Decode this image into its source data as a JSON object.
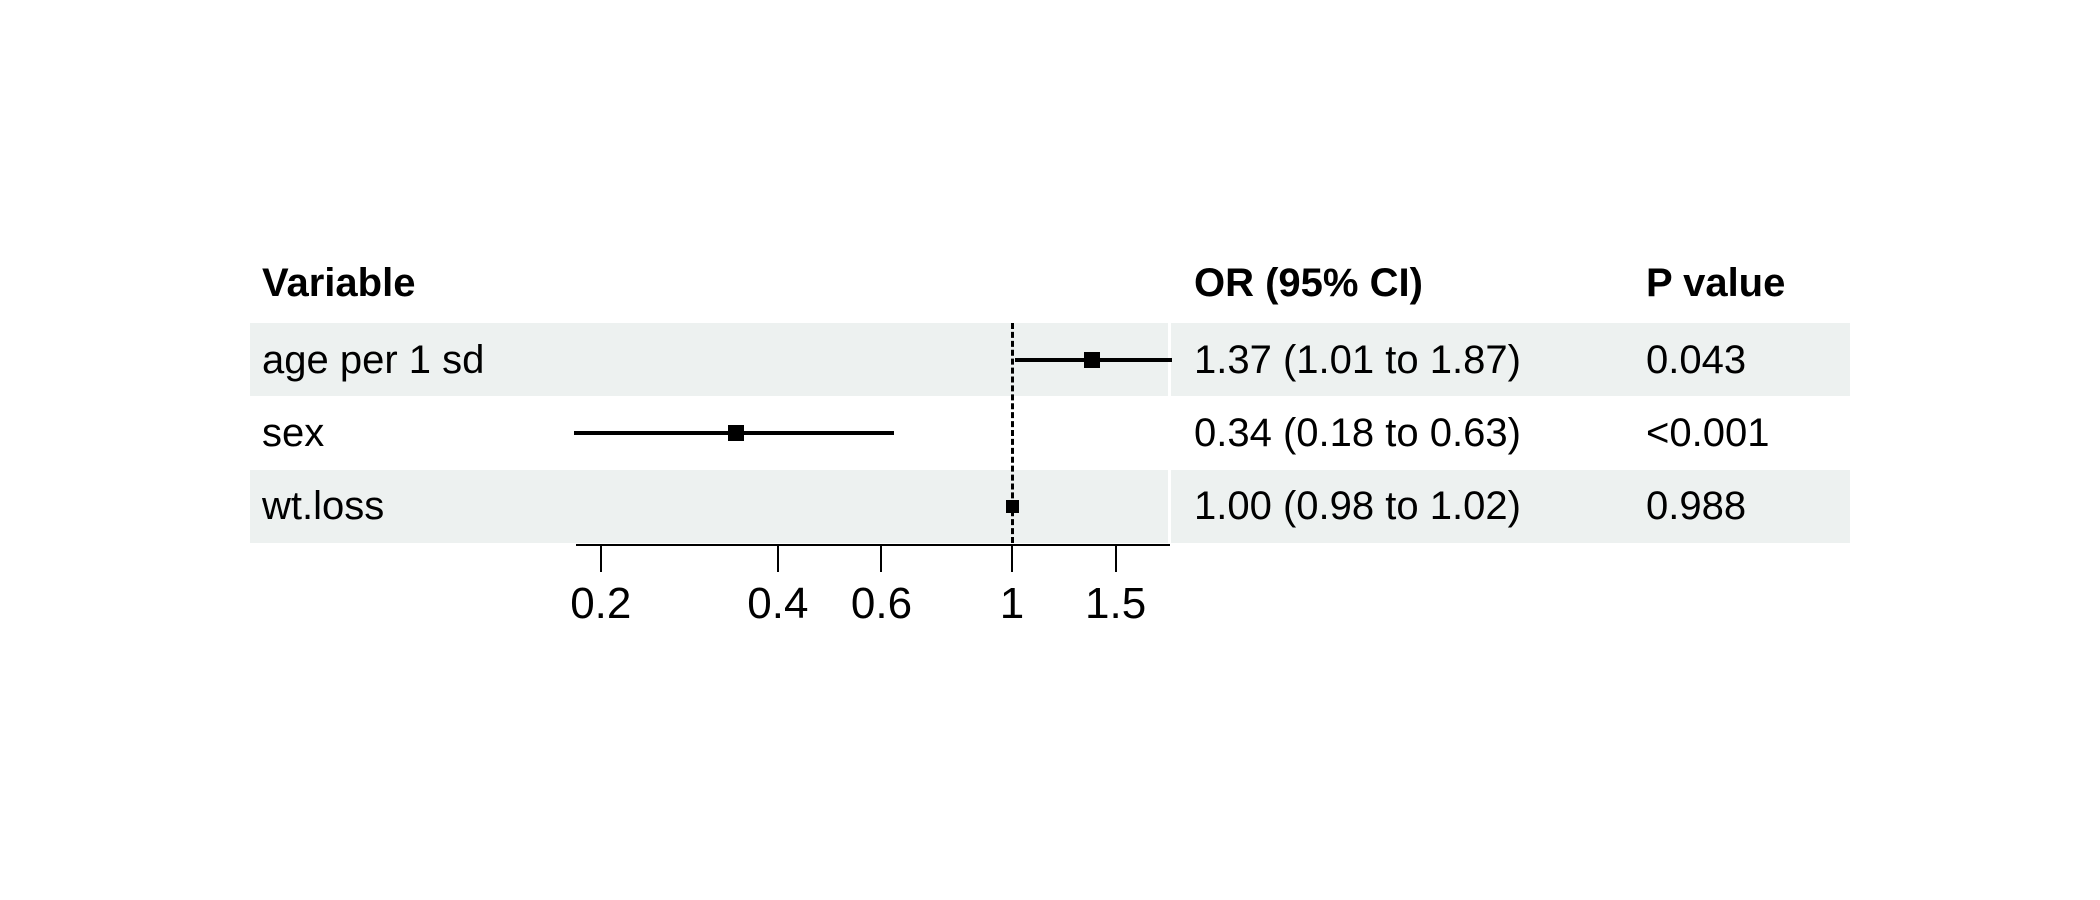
{
  "chart_data": {
    "type": "scatter",
    "variant": "forest-plot",
    "x_scale": "log",
    "x_ticks": [
      0.2,
      0.4,
      0.6,
      1,
      1.5
    ],
    "x_range": [
      0.18,
      1.87
    ],
    "reference_line": 1,
    "grid": "off",
    "columns": {
      "variable": "Variable",
      "or_ci": "OR (95% CI)",
      "p_value": "P value"
    },
    "rows": [
      {
        "variable": "age per 1 sd",
        "or": 1.37,
        "ci_low": 1.01,
        "ci_high": 1.87,
        "or_label": "1.37 (1.01 to 1.87)",
        "p_value": "0.043",
        "shaded": true
      },
      {
        "variable": "sex",
        "or": 0.34,
        "ci_low": 0.18,
        "ci_high": 0.63,
        "or_label": "0.34 (0.18 to 0.63)",
        "p_value": "<0.001",
        "shaded": false
      },
      {
        "variable": "wt.loss",
        "or": 1.0,
        "ci_low": 0.98,
        "ci_high": 1.02,
        "or_label": "1.00 (0.98 to 1.02)",
        "p_value": "0.988",
        "shaded": true
      }
    ]
  },
  "colors": {
    "row_band": "#edf1f0",
    "ink": "#000000",
    "background": "#ffffff"
  }
}
